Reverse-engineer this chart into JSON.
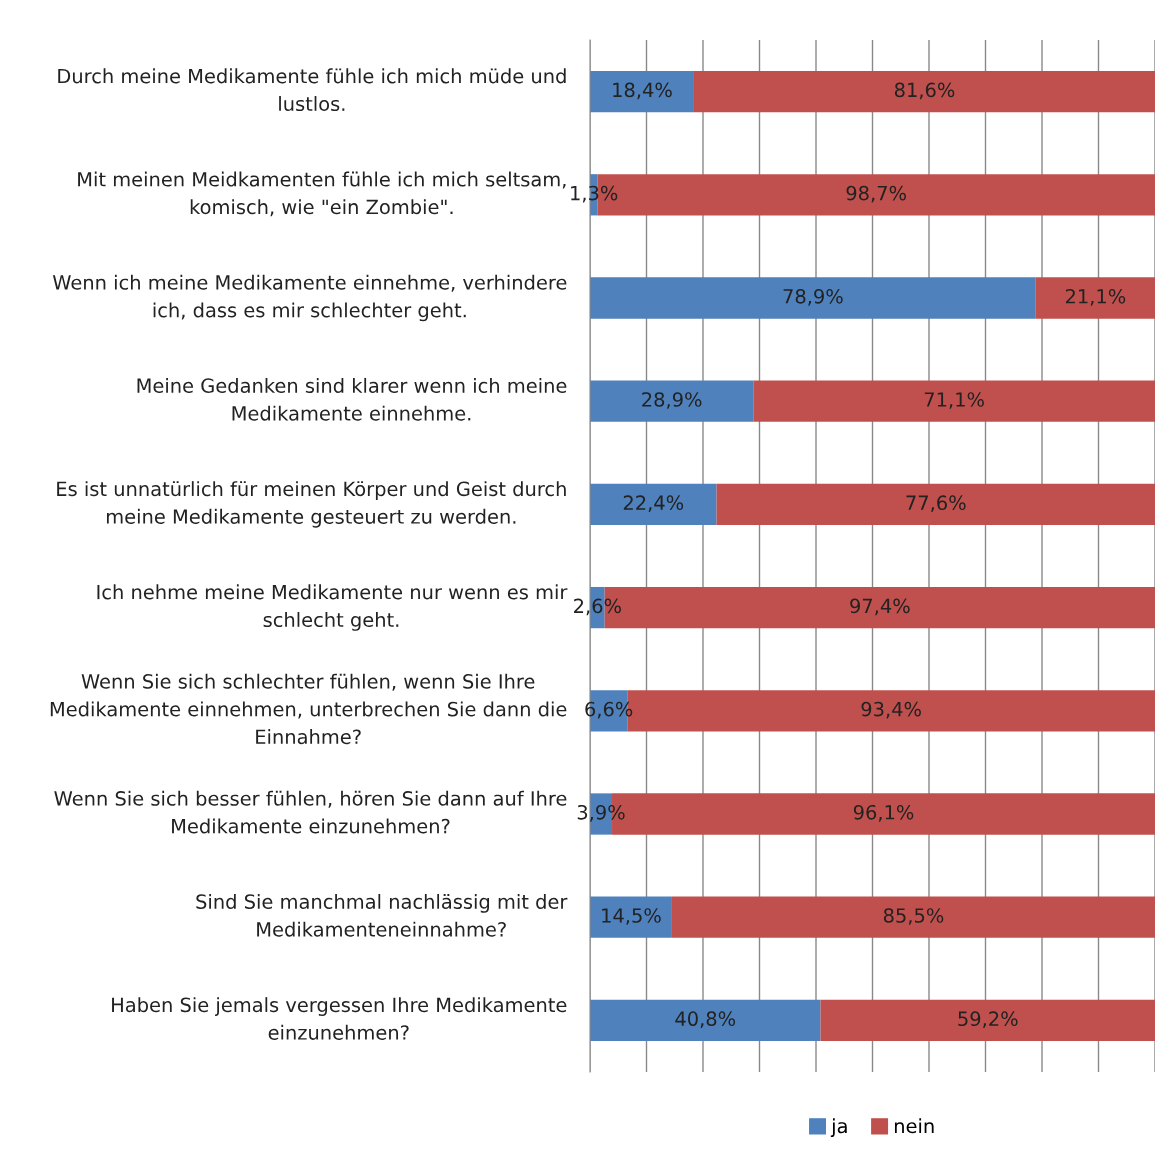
{
  "chart_data": {
    "type": "bar",
    "orientation": "horizontal",
    "stacked": true,
    "categories": [
      "Durch meine Medikamente fühle ich mich müde und lustlos.",
      "Mit meinen Meidkamenten fühle ich mich seltsam, komisch, wie \"ein Zombie\".",
      "Wenn ich meine Medikamente einnehme, verhindere ich, dass es mir schlechter geht.",
      "Meine Gedanken sind klarer wenn ich meine Medikamente einnehme.",
      "Es ist unnatürlich für meinen Körper und Geist durch meine Medikamente gesteuert zu werden.",
      "Ich nehme meine Medikamente nur wenn es mir schlecht geht.",
      "Wenn Sie sich schlechter fühlen, wenn Sie Ihre Medikamente einnehmen, unterbrechen Sie dann die Einnahme?",
      "Wenn Sie sich besser fühlen, hören Sie dann auf Ihre Medikamente einzunehmen?",
      "Sind Sie manchmal nachlässig mit der Medikamenteneinnahme?",
      "Haben Sie jemals vergessen Ihre Medikamente einzunehmen?"
    ],
    "series": [
      {
        "name": "ja",
        "color": "#4f81bd",
        "values": [
          18.4,
          1.3,
          78.9,
          28.9,
          22.4,
          2.6,
          6.6,
          3.9,
          14.5,
          40.8
        ],
        "value_labels": [
          "18,4%",
          "1,3%",
          "78,9%",
          "28,9%",
          "22,4%",
          "2,6%",
          "6,6%",
          "3,9%",
          "14,5%",
          "40,8%"
        ]
      },
      {
        "name": "nein",
        "color": "#c0504d",
        "values": [
          81.6,
          98.7,
          21.1,
          71.1,
          77.6,
          97.4,
          93.4,
          96.1,
          85.5,
          59.2
        ],
        "value_labels": [
          "81,6%",
          "98,7%",
          "21,1%",
          "71,1%",
          "77,6%",
          "97,4%",
          "93,4%",
          "96,1%",
          "85,5%",
          "59,2%"
        ]
      }
    ],
    "xlim": [
      0,
      100
    ],
    "xticks": [
      {
        "value": 0,
        "label": null
      },
      {
        "value": 10,
        "label": null
      },
      {
        "value": 20,
        "label": null
      },
      {
        "value": 30,
        "label": null
      },
      {
        "value": 40,
        "label": null
      },
      {
        "value": 50,
        "label": null
      },
      {
        "value": 60,
        "label": null
      },
      {
        "value": 70,
        "label": null
      },
      {
        "value": 80,
        "label": null
      },
      {
        "value": 90,
        "label": null
      },
      {
        "value": 100,
        "label": null
      }
    ],
    "tick_labels": "y",
    "grid": "x",
    "legend": "bottom"
  }
}
